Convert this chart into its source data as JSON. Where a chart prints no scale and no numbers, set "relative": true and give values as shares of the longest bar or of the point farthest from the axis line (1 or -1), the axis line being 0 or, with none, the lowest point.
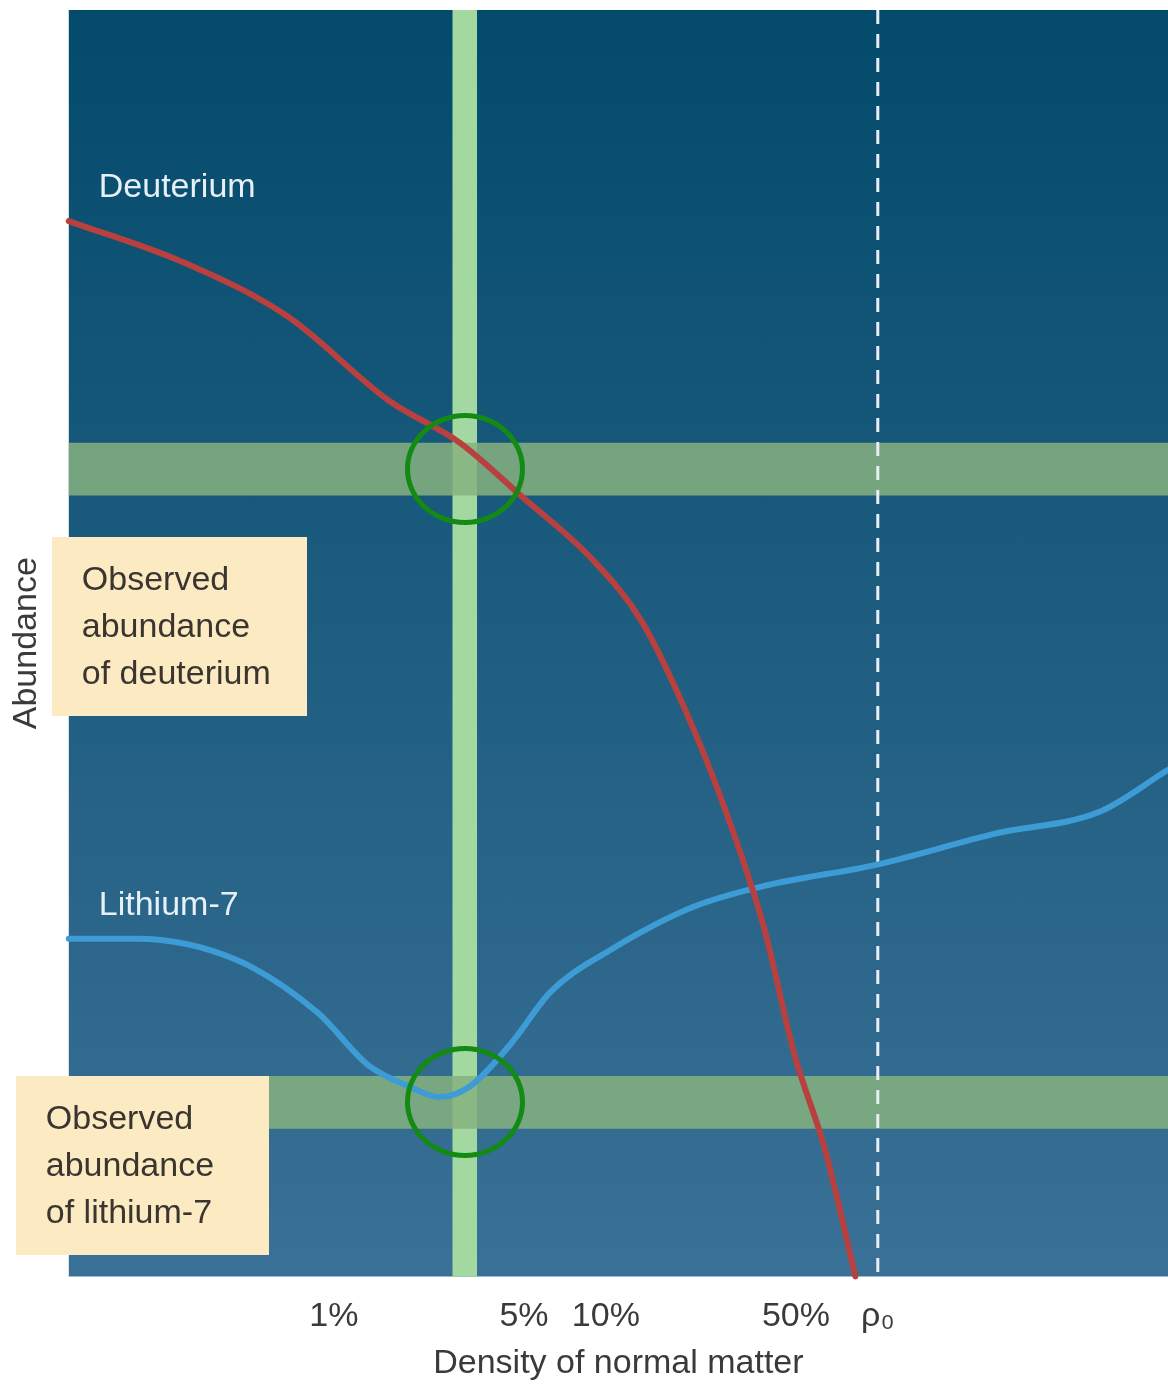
{
  "chart_data": {
    "type": "line",
    "xlabel": "Density of normal matter",
    "ylabel": "Abundance",
    "relative": true,
    "log": "x",
    "grid": false,
    "legend": false,
    "marker": "none",
    "line_style": "solid",
    "xlim": [
      0.106,
      1167
    ],
    "xticks": [
      {
        "value": 1,
        "label": "1%"
      },
      {
        "value": 5,
        "label": "5%"
      },
      {
        "value": 10,
        "label": "10%"
      },
      {
        "value": 50,
        "label": "50%"
      },
      {
        "value": 100,
        "label": "ρ₀"
      }
    ],
    "series": [
      {
        "name": "Deuterium",
        "color": "#b8403f",
        "x": [
          0.106,
          0.285,
          0.673,
          1.59,
          2.9,
          4.86,
          8.87,
          13.6,
          20.9,
          29.5,
          38.2,
          49.4,
          64,
          82.7
        ],
        "values": [
          1,
          0.96,
          0.91,
          0.83,
          0.79,
          0.74,
          0.68,
          0.62,
          0.52,
          0.42,
          0.33,
          0.21,
          0.12,
          0
        ]
      },
      {
        "name": "Lithium-7",
        "color": "#3d9bd6",
        "x": [
          0.106,
          0.186,
          0.438,
          0.871,
          1.34,
          1.89,
          2.44,
          3.16,
          4.46,
          6.29,
          10.5,
          20.9,
          38.2,
          98.4,
          275,
          650,
          1167
        ],
        "values": [
          0.32,
          0.32,
          0.3,
          0.25,
          0.2,
          0.18,
          0.17,
          0.18,
          0.22,
          0.27,
          0.31,
          0.35,
          0.37,
          0.39,
          0.42,
          0.44,
          0.48
        ]
      }
    ],
    "bands": [
      {
        "axis": "x",
        "from": 2.73,
        "to": 3.36,
        "color": "#a3d9a0"
      },
      {
        "axis": "y",
        "from": 0.74,
        "to": 0.79,
        "color": "#86b27f",
        "label": "Observed abundance of deuterium"
      },
      {
        "axis": "y",
        "from": 0.14,
        "to": 0.19,
        "color": "#86b27f",
        "label": "Observed abundance of lithium-7"
      }
    ],
    "ref_lines": [
      {
        "axis": "x",
        "value": 100,
        "color": "#e8eef2",
        "line_style": "dashed"
      }
    ]
  }
}
